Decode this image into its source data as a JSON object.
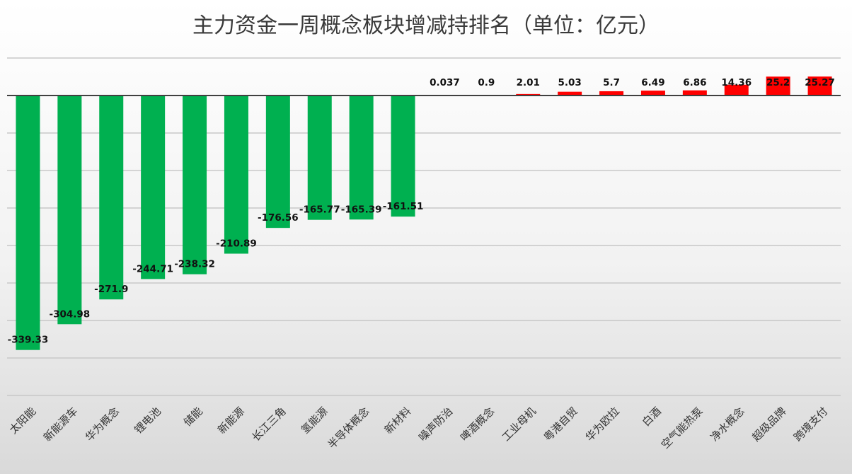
{
  "chart_data": {
    "type": "bar",
    "title": "主力资金一周概念板块增减持排名（单位：亿元）",
    "xlabel": "",
    "ylabel": "",
    "ylim": [
      -400,
      50
    ],
    "grid": true,
    "legend": "none",
    "categories": [
      "太阳能",
      "新能源车",
      "华为概念",
      "锂电池",
      "储能",
      "新能源",
      "长江三角",
      "氢能源",
      "半导体概念",
      "新材料",
      "噪声防治",
      "啤酒概念",
      "工业母机",
      "粤港自贸",
      "华为欧拉",
      "白酒",
      "空气能热泵",
      "净水概念",
      "超级品牌",
      "跨境支付"
    ],
    "values": [
      -339.33,
      -304.98,
      -271.9,
      -244.71,
      -238.32,
      -210.89,
      -176.56,
      -165.77,
      -165.39,
      -161.51,
      0.037,
      0.9,
      2.01,
      5.03,
      5.7,
      6.49,
      6.86,
      14.36,
      25.2,
      25.27
    ],
    "value_labels": [
      "-339.33",
      "-304.98",
      "-271.9",
      "-244.71",
      "-238.32",
      "-210.89",
      "-176.56",
      "-165.77",
      "-165.39",
      "-161.51",
      "0.037",
      "0.9",
      "2.01",
      "5.03",
      "5.7",
      "6.49",
      "6.86",
      "14.36",
      "25.2",
      "25.27"
    ],
    "colors": {
      "negative": "#00b050",
      "positive": "#ff0000",
      "axis": "#404040",
      "grid": "#c8c8c8"
    }
  }
}
